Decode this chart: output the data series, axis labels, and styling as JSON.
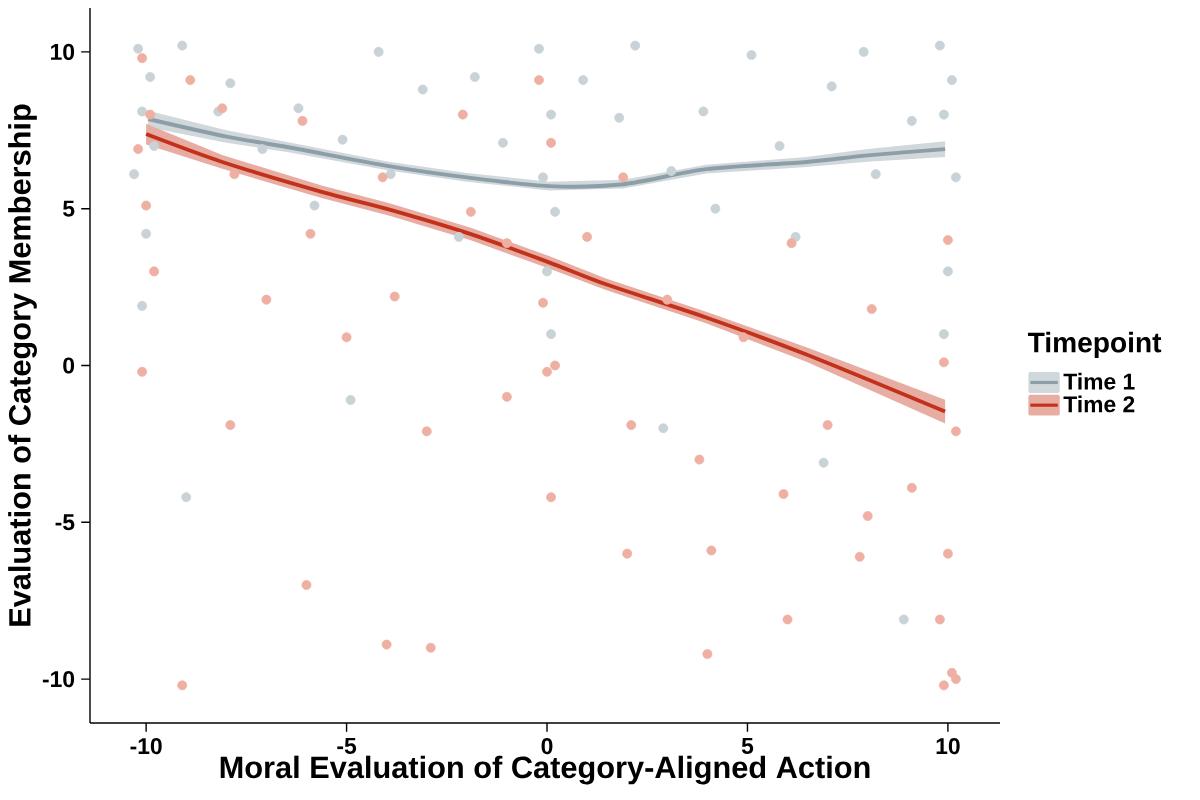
{
  "chart_data": {
    "type": "scatter",
    "xlabel": "Moral Evaluation of Category-Aligned Action",
    "ylabel": "Evaluation of Category Membership",
    "legend_title": "Timepoint",
    "xlim": [
      -11.4,
      11.3
    ],
    "ylim": [
      -11.4,
      11.4
    ],
    "xticks": [
      -10,
      -5,
      0,
      5,
      10
    ],
    "yticks": [
      -10,
      -5,
      0,
      5,
      10
    ],
    "grid": false,
    "legend": "right",
    "series": [
      {
        "color": "#c9d3d7",
        "x": [
          -10.2,
          -9.9,
          -10.1,
          -9.8,
          -10.3,
          -10.0,
          -9.1,
          -8.2,
          -7.9,
          -7.1,
          -6.2,
          -5.8,
          -5.1,
          -4.2,
          -3.9,
          -3.1,
          -2.2,
          -1.8,
          -1.1,
          -0.2,
          0.1,
          -0.1,
          0.2,
          0.0,
          0.9,
          1.8,
          2.2,
          3.1,
          3.9,
          4.2,
          5.1,
          5.8,
          6.2,
          7.1,
          7.9,
          8.2,
          9.1,
          9.8,
          10.1,
          9.9,
          10.2,
          10.0,
          -10.1,
          0.1,
          9.9,
          -9.0,
          -4.9,
          2.9,
          6.9,
          8.9
        ],
        "values": [
          10.1,
          9.2,
          8.1,
          7.0,
          6.1,
          4.2,
          10.2,
          8.1,
          9.0,
          6.9,
          8.2,
          5.1,
          7.2,
          10.0,
          6.1,
          8.8,
          4.1,
          9.2,
          7.1,
          10.1,
          8.0,
          6.0,
          4.9,
          3.0,
          9.1,
          7.9,
          10.2,
          6.2,
          8.1,
          5.0,
          9.9,
          7.0,
          4.1,
          8.9,
          10.0,
          6.1,
          7.8,
          10.2,
          9.1,
          8.0,
          6.0,
          3.0,
          1.9,
          1.0,
          1.0,
          -4.2,
          -1.1,
          -2.0,
          -3.1,
          -8.1
        ]
      },
      {
        "color": "#efb0a3",
        "x": [
          -10.1,
          -9.9,
          -10.2,
          -10.0,
          -9.8,
          -10.1,
          -8.9,
          -8.1,
          -7.8,
          -7.0,
          -6.1,
          -5.9,
          -5.0,
          -4.1,
          -3.8,
          -3.0,
          -2.1,
          -1.9,
          -1.0,
          -0.2,
          0.1,
          -0.1,
          0.2,
          0.0,
          1.0,
          2.1,
          1.9,
          3.0,
          3.8,
          4.1,
          4.9,
          5.9,
          6.1,
          7.0,
          7.8,
          8.1,
          9.1,
          9.9,
          10.2,
          10.0,
          9.8,
          10.1,
          9.9,
          10.2,
          -9.1,
          -6.0,
          -2.9,
          2.0,
          4.0,
          6.0,
          8.0,
          10.0,
          -7.9,
          -4.0,
          -1.0,
          0.1
        ],
        "values": [
          9.8,
          8.0,
          6.9,
          5.1,
          3.0,
          -0.2,
          9.1,
          8.2,
          6.1,
          2.1,
          7.8,
          4.2,
          0.9,
          6.0,
          2.2,
          -2.1,
          8.0,
          4.9,
          -1.0,
          9.1,
          7.1,
          2.0,
          0.0,
          -0.2,
          4.1,
          -1.9,
          6.0,
          2.1,
          -3.0,
          -5.9,
          0.9,
          -4.1,
          3.9,
          -1.9,
          -6.1,
          1.8,
          -3.9,
          0.1,
          -2.1,
          -6.0,
          -8.1,
          -9.8,
          -10.2,
          -10.0,
          -10.2,
          -7.0,
          -9.0,
          -6.0,
          -9.2,
          -8.1,
          -4.8,
          4.0,
          -1.9,
          -8.9,
          3.9,
          -4.2
        ]
      },
      {
        "type": "line",
        "name": "Time 1",
        "color": "#8c9ea7",
        "x": [
          -9.95,
          -8.0,
          -6.45,
          -3.95,
          -2.0,
          0.05,
          1.9,
          3.97,
          6.47,
          8.0,
          9.93
        ],
        "values": [
          7.86,
          7.3,
          6.96,
          6.36,
          6.0,
          5.72,
          5.78,
          6.26,
          6.49,
          6.7,
          6.9
        ],
        "lower": [
          7.6,
          7.1,
          6.8,
          6.22,
          5.86,
          5.58,
          5.64,
          6.12,
          6.33,
          6.5,
          6.65
        ],
        "upper": [
          8.12,
          7.5,
          7.12,
          6.5,
          6.14,
          5.86,
          5.92,
          6.4,
          6.65,
          6.9,
          7.15
        ]
      },
      {
        "type": "line",
        "name": "Time 2",
        "color": "#c4311a",
        "x": [
          -10.0,
          -8.1,
          -5.6,
          -3.95,
          -1.9,
          0.05,
          1.47,
          3.97,
          6.47,
          9.93
        ],
        "values": [
          7.38,
          6.49,
          5.53,
          4.98,
          4.19,
          3.29,
          2.59,
          1.53,
          0.35,
          -1.47
        ],
        "lower": [
          7.05,
          6.27,
          5.33,
          4.78,
          3.99,
          3.09,
          2.41,
          1.35,
          0.12,
          -1.85
        ],
        "upper": [
          7.71,
          6.71,
          5.73,
          5.18,
          4.39,
          3.49,
          2.77,
          1.71,
          0.58,
          -1.09
        ]
      }
    ]
  }
}
